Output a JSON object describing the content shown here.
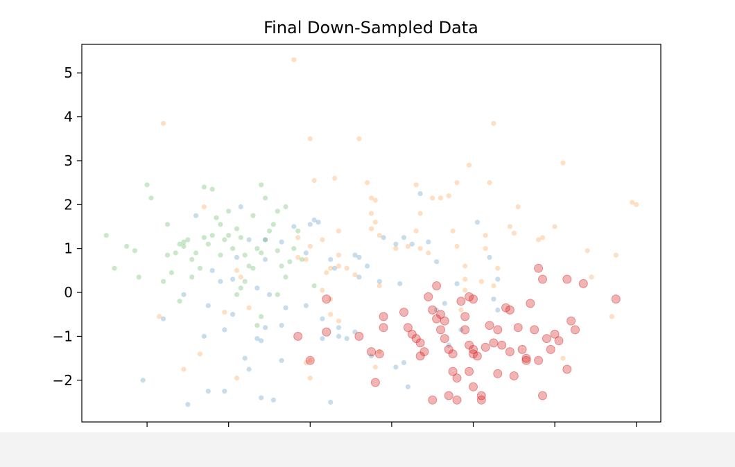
{
  "chart_data": {
    "type": "scatter",
    "title": "Final Down-Sampled Data",
    "xlabel": "",
    "ylabel": "",
    "xlim": [
      -2.8,
      4.3
    ],
    "ylim": [
      -2.95,
      5.65
    ],
    "xticks": [
      -2,
      -1,
      0,
      1,
      2,
      3,
      4
    ],
    "yticks": [
      -2,
      -1,
      0,
      1,
      2,
      3,
      4,
      5
    ],
    "grid": false,
    "legend": "none",
    "series": [
      {
        "color": "#1f77b4",
        "marker_size": "small",
        "opacity": 0.25,
        "points": [
          [
            -1.5,
            -2.55
          ],
          [
            -2.05,
            -2.0
          ],
          [
            -1.25,
            -2.25
          ],
          [
            -1.05,
            -2.25
          ],
          [
            -0.6,
            -2.4
          ],
          [
            -0.45,
            -2.45
          ],
          [
            0.25,
            -2.5
          ],
          [
            -0.35,
            -1.55
          ],
          [
            -0.8,
            -1.5
          ],
          [
            -0.75,
            -1.75
          ],
          [
            -1.05,
            -0.85
          ],
          [
            -1.3,
            -1.0
          ],
          [
            -0.95,
            -0.5
          ],
          [
            -1.25,
            -0.3
          ],
          [
            -0.95,
            0.3
          ],
          [
            -1.1,
            0.25
          ],
          [
            -0.65,
            0.1
          ],
          [
            -0.5,
            -0.05
          ],
          [
            -0.3,
            -0.35
          ],
          [
            -0.55,
            -0.8
          ],
          [
            -0.65,
            -1.05
          ],
          [
            -0.35,
            -0.75
          ],
          [
            0.15,
            -0.6
          ],
          [
            0.35,
            -0.8
          ],
          [
            0.45,
            -1.05
          ],
          [
            0.35,
            -1.0
          ],
          [
            0.15,
            -1.05
          ],
          [
            0.55,
            -0.9
          ],
          [
            -1.8,
            -0.6
          ],
          [
            -1.55,
            -0.05
          ],
          [
            -1.2,
            0.5
          ],
          [
            -0.9,
            0.8
          ],
          [
            -0.75,
            1.2
          ],
          [
            -0.55,
            0.75
          ],
          [
            -0.35,
            1.15
          ],
          [
            -0.2,
            1.5
          ],
          [
            0.0,
            1.55
          ],
          [
            0.1,
            1.6
          ],
          [
            0.05,
            1.65
          ],
          [
            -0.05,
            0.9
          ],
          [
            0.25,
            0.75
          ],
          [
            0.3,
            0.55
          ],
          [
            0.55,
            0.85
          ],
          [
            0.6,
            0.8
          ],
          [
            0.7,
            0.6
          ],
          [
            0.85,
            0.25
          ],
          [
            0.9,
            1.25
          ],
          [
            1.05,
            1.1
          ],
          [
            1.15,
            1.25
          ],
          [
            1.25,
            1.1
          ],
          [
            1.35,
            2.25
          ],
          [
            1.55,
            0.7
          ],
          [
            1.8,
            0.2
          ],
          [
            2.05,
            1.6
          ],
          [
            2.2,
            0.8
          ],
          [
            2.3,
            0.3
          ],
          [
            1.65,
            -0.25
          ],
          [
            2.3,
            -0.4
          ],
          [
            1.15,
            -1.6
          ],
          [
            1.05,
            -1.7
          ],
          [
            1.2,
            -2.15
          ],
          [
            1.7,
            -1.2
          ],
          [
            1.55,
            -0.4
          ],
          [
            1.1,
            0.2
          ],
          [
            -0.6,
            -1.1
          ],
          [
            0.75,
            -1.45
          ],
          [
            1.85,
            -0.85
          ],
          [
            2.25,
            -0.15
          ],
          [
            1.45,
            1.15
          ],
          [
            -0.05,
            -0.3
          ],
          [
            0.6,
            0.35
          ],
          [
            -1.4,
            1.75
          ],
          [
            -0.85,
            1.95
          ],
          [
            -0.55,
            1.2
          ]
        ]
      },
      {
        "color": "#ff7f0e",
        "marker_size": "small",
        "opacity": 0.25,
        "points": [
          [
            -0.2,
            5.3
          ],
          [
            -1.8,
            3.85
          ],
          [
            0.0,
            3.5
          ],
          [
            0.6,
            3.5
          ],
          [
            2.25,
            3.85
          ],
          [
            3.1,
            2.95
          ],
          [
            1.95,
            2.9
          ],
          [
            2.2,
            2.5
          ],
          [
            3.95,
            2.05
          ],
          [
            4.0,
            2.0
          ],
          [
            0.05,
            2.55
          ],
          [
            0.3,
            2.6
          ],
          [
            0.7,
            2.5
          ],
          [
            0.75,
            2.15
          ],
          [
            0.8,
            2.1
          ],
          [
            1.7,
            2.2
          ],
          [
            1.8,
            2.5
          ],
          [
            1.6,
            2.15
          ],
          [
            1.5,
            2.15
          ],
          [
            1.3,
            2.45
          ],
          [
            2.55,
            1.95
          ],
          [
            1.35,
            1.8
          ],
          [
            0.75,
            1.8
          ],
          [
            0.8,
            1.6
          ],
          [
            0.75,
            1.45
          ],
          [
            0.85,
            1.3
          ],
          [
            1.3,
            1.4
          ],
          [
            1.35,
            1.0
          ],
          [
            1.2,
            1.05
          ],
          [
            1.05,
            1.0
          ],
          [
            1.45,
            0.9
          ],
          [
            1.75,
            1.4
          ],
          [
            1.8,
            1.05
          ],
          [
            2.15,
            1.3
          ],
          [
            2.15,
            1.0
          ],
          [
            2.45,
            1.5
          ],
          [
            2.5,
            1.35
          ],
          [
            2.8,
            1.2
          ],
          [
            2.85,
            1.25
          ],
          [
            3.0,
            1.5
          ],
          [
            3.4,
            0.95
          ],
          [
            3.75,
            0.85
          ],
          [
            2.3,
            0.55
          ],
          [
            2.25,
            0.15
          ],
          [
            2.1,
            0.25
          ],
          [
            1.9,
            0.6
          ],
          [
            1.9,
            0.3
          ],
          [
            1.9,
            0.05
          ],
          [
            3.45,
            0.35
          ],
          [
            3.7,
            -0.55
          ],
          [
            0.35,
            0.85
          ],
          [
            0.35,
            1.4
          ],
          [
            0.15,
            1.2
          ],
          [
            0.0,
            1.05
          ],
          [
            -0.15,
            1.25
          ],
          [
            -1.05,
            -0.45
          ],
          [
            -0.9,
            0.5
          ],
          [
            -0.85,
            0.35
          ],
          [
            -0.75,
            -0.35
          ],
          [
            -0.15,
            0.8
          ],
          [
            -0.05,
            0.75
          ],
          [
            0.2,
            0.45
          ],
          [
            0.25,
            0.55
          ],
          [
            0.35,
            0.6
          ],
          [
            0.45,
            0.55
          ],
          [
            0.55,
            0.4
          ],
          [
            0.15,
            0.05
          ],
          [
            0.25,
            -0.15
          ],
          [
            0.25,
            -0.5
          ],
          [
            0.35,
            -0.65
          ],
          [
            0.0,
            -1.55
          ],
          [
            0.0,
            -1.95
          ],
          [
            -0.05,
            -1.6
          ],
          [
            -1.35,
            -1.4
          ],
          [
            -1.55,
            -1.75
          ],
          [
            -0.9,
            -1.95
          ],
          [
            -1.85,
            -0.55
          ],
          [
            -1.3,
            1.95
          ],
          [
            0.85,
            -1.35
          ],
          [
            0.85,
            0.15
          ],
          [
            3.1,
            -1.5
          ],
          [
            1.85,
            -0.4
          ],
          [
            0.8,
            -1.7
          ]
        ]
      },
      {
        "color": "#2ca02c",
        "marker_size": "small",
        "opacity": 0.25,
        "points": [
          [
            -2.5,
            1.3
          ],
          [
            -2.4,
            0.55
          ],
          [
            -2.25,
            1.05
          ],
          [
            -2.15,
            0.95
          ],
          [
            -2.1,
            0.35
          ],
          [
            -2.0,
            2.45
          ],
          [
            -1.95,
            2.15
          ],
          [
            -1.75,
            1.55
          ],
          [
            -1.8,
            0.25
          ],
          [
            -1.7,
            0.45
          ],
          [
            -1.75,
            0.85
          ],
          [
            -1.65,
            0.9
          ],
          [
            -1.6,
            1.1
          ],
          [
            -1.55,
            1.15
          ],
          [
            -1.5,
            1.2
          ],
          [
            -1.45,
            0.75
          ],
          [
            -1.4,
            0.9
          ],
          [
            -1.35,
            0.55
          ],
          [
            -1.3,
            1.25
          ],
          [
            -1.25,
            1.1
          ],
          [
            -1.2,
            1.3
          ],
          [
            -1.1,
            1.55
          ],
          [
            -1.05,
            1.2
          ],
          [
            -1.0,
            1.3
          ],
          [
            -0.95,
            1.0
          ],
          [
            -0.9,
            1.45
          ],
          [
            -0.85,
            1.25
          ],
          [
            -0.8,
            0.85
          ],
          [
            -0.75,
            0.6
          ],
          [
            -0.7,
            0.55
          ],
          [
            -0.65,
            1.0
          ],
          [
            -0.6,
            0.9
          ],
          [
            -0.55,
            1.2
          ],
          [
            -0.5,
            1.4
          ],
          [
            -0.45,
            1.55
          ],
          [
            -0.4,
            0.95
          ],
          [
            -0.35,
            0.6
          ],
          [
            -0.3,
            0.35
          ],
          [
            -0.25,
            0.7
          ],
          [
            -0.2,
            1.0
          ],
          [
            -0.15,
            1.4
          ],
          [
            -0.1,
            0.75
          ],
          [
            -1.3,
            2.4
          ],
          [
            -1.2,
            2.35
          ],
          [
            -1.15,
            1.7
          ],
          [
            -1.0,
            1.85
          ],
          [
            -0.6,
            2.45
          ],
          [
            -0.55,
            2.15
          ],
          [
            -0.4,
            1.85
          ],
          [
            -0.3,
            1.95
          ],
          [
            -0.85,
            0.1
          ],
          [
            -0.8,
            0.25
          ],
          [
            -0.9,
            -0.05
          ],
          [
            -0.6,
            -0.55
          ],
          [
            -0.4,
            -0.05
          ],
          [
            -1.6,
            -0.2
          ],
          [
            -1.45,
            0.35
          ],
          [
            -1.1,
            0.85
          ],
          [
            0.05,
            0.15
          ],
          [
            -0.65,
            -0.75
          ],
          [
            -1.55,
            1.05
          ],
          [
            -0.7,
            1.75
          ]
        ]
      },
      {
        "color": "#d62728",
        "marker_size": "large",
        "opacity": 0.35,
        "points": [
          [
            -0.15,
            -1.0
          ],
          [
            0.0,
            -1.55
          ],
          [
            0.2,
            -0.15
          ],
          [
            0.2,
            -0.9
          ],
          [
            0.6,
            -1.0
          ],
          [
            0.75,
            -1.35
          ],
          [
            0.8,
            -2.05
          ],
          [
            0.85,
            -1.4
          ],
          [
            0.9,
            -0.55
          ],
          [
            0.9,
            -0.8
          ],
          [
            1.15,
            -0.45
          ],
          [
            1.2,
            -0.8
          ],
          [
            1.25,
            -0.95
          ],
          [
            1.3,
            -1.05
          ],
          [
            1.35,
            -1.15
          ],
          [
            1.4,
            -1.35
          ],
          [
            1.45,
            -0.1
          ],
          [
            1.5,
            -0.4
          ],
          [
            1.55,
            -0.6
          ],
          [
            1.6,
            -0.5
          ],
          [
            1.6,
            -0.85
          ],
          [
            1.65,
            -1.05
          ],
          [
            1.7,
            -1.3
          ],
          [
            1.75,
            -1.4
          ],
          [
            1.8,
            -1.95
          ],
          [
            1.85,
            -0.2
          ],
          [
            1.9,
            -0.55
          ],
          [
            1.9,
            -0.85
          ],
          [
            1.95,
            -1.2
          ],
          [
            1.95,
            -0.1
          ],
          [
            2.0,
            -0.15
          ],
          [
            2.0,
            -1.4
          ],
          [
            2.05,
            -1.45
          ],
          [
            2.1,
            -2.35
          ],
          [
            2.15,
            -1.25
          ],
          [
            2.2,
            -0.75
          ],
          [
            2.25,
            -1.15
          ],
          [
            2.3,
            -0.85
          ],
          [
            2.35,
            -1.2
          ],
          [
            2.4,
            -0.35
          ],
          [
            2.45,
            -1.35
          ],
          [
            2.5,
            -1.9
          ],
          [
            2.55,
            -0.8
          ],
          [
            2.6,
            -1.3
          ],
          [
            2.65,
            -1.5
          ],
          [
            2.7,
            -0.25
          ],
          [
            2.75,
            -0.85
          ],
          [
            2.8,
            0.55
          ],
          [
            2.8,
            -1.55
          ],
          [
            2.85,
            0.3
          ],
          [
            2.9,
            -1.05
          ],
          [
            2.95,
            -1.3
          ],
          [
            3.0,
            -0.95
          ],
          [
            3.05,
            -1.1
          ],
          [
            3.15,
            0.3
          ],
          [
            3.2,
            -0.65
          ],
          [
            3.25,
            -0.85
          ],
          [
            3.35,
            0.2
          ],
          [
            3.75,
            -0.15
          ],
          [
            1.5,
            -2.45
          ],
          [
            1.7,
            -2.35
          ],
          [
            1.8,
            -2.45
          ],
          [
            2.0,
            -2.15
          ],
          [
            2.1,
            -2.45
          ],
          [
            2.3,
            -1.85
          ],
          [
            2.85,
            -2.35
          ],
          [
            1.55,
            0.15
          ],
          [
            1.35,
            -1.45
          ],
          [
            2.45,
            -0.4
          ],
          [
            1.95,
            -1.8
          ],
          [
            3.15,
            -1.75
          ],
          [
            2.65,
            -1.55
          ],
          [
            1.75,
            -1.8
          ],
          [
            1.65,
            -0.65
          ],
          [
            2.0,
            -1.3
          ]
        ]
      }
    ]
  }
}
